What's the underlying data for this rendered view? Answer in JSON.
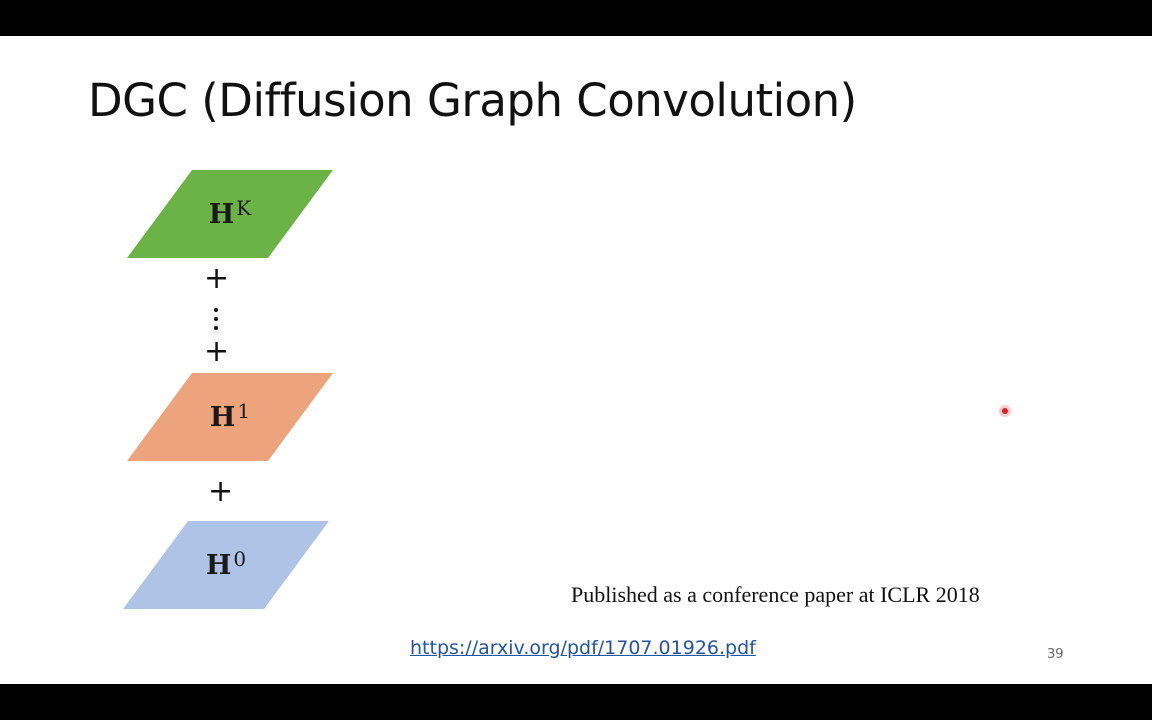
{
  "slide": {
    "title": "DGC (Diffusion Graph Convolution)",
    "page_number": "39",
    "published_note": "Published as a conference paper at ICLR 2018",
    "link_text": "https://arxiv.org/pdf/1707.01926.pdf"
  },
  "diagram": {
    "blocks": [
      {
        "label": "H",
        "superscript": "K",
        "color": "#6bb344"
      },
      {
        "label": "H",
        "superscript": "1",
        "color": "#eda47c"
      },
      {
        "label": "H",
        "superscript": "0",
        "color": "#afc3e6"
      }
    ],
    "plus_symbol": "+"
  }
}
